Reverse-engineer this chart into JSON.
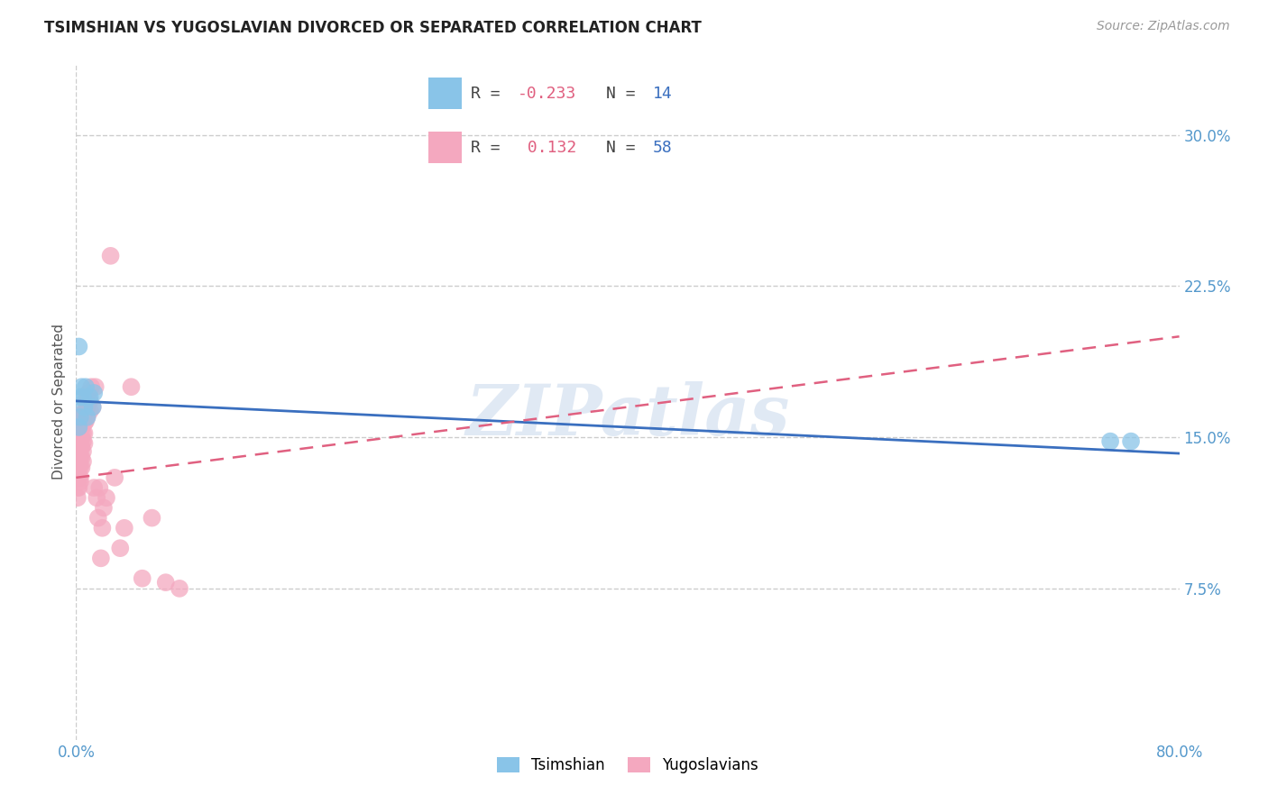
{
  "title": "TSIMSHIAN VS YUGOSLAVIAN DIVORCED OR SEPARATED CORRELATION CHART",
  "source": "Source: ZipAtlas.com",
  "ylabel": "Divorced or Separated",
  "yticks": [
    "7.5%",
    "15.0%",
    "22.5%",
    "30.0%"
  ],
  "ytick_vals": [
    0.075,
    0.15,
    0.225,
    0.3
  ],
  "xlim": [
    0.0,
    0.8
  ],
  "ylim": [
    0.0,
    0.335
  ],
  "tsimshian_color": "#89C4E8",
  "yugoslav_color": "#F4A8BF",
  "tsimshian_line_color": "#3A6FBF",
  "yugoslav_line_color": "#E06080",
  "watermark": "ZIPatlas",
  "tsimshian_x": [
    0.002,
    0.002,
    0.003,
    0.003,
    0.004,
    0.005,
    0.006,
    0.007,
    0.008,
    0.01,
    0.012,
    0.75,
    0.765,
    0.013
  ],
  "tsimshian_y": [
    0.195,
    0.155,
    0.16,
    0.17,
    0.175,
    0.17,
    0.165,
    0.175,
    0.16,
    0.17,
    0.165,
    0.148,
    0.148,
    0.172
  ],
  "yugoslav_x": [
    0.001,
    0.001,
    0.001,
    0.002,
    0.002,
    0.002,
    0.002,
    0.002,
    0.003,
    0.003,
    0.003,
    0.003,
    0.003,
    0.003,
    0.004,
    0.004,
    0.004,
    0.004,
    0.004,
    0.005,
    0.005,
    0.005,
    0.005,
    0.005,
    0.005,
    0.006,
    0.006,
    0.006,
    0.006,
    0.007,
    0.007,
    0.007,
    0.008,
    0.008,
    0.009,
    0.009,
    0.01,
    0.01,
    0.011,
    0.012,
    0.013,
    0.014,
    0.015,
    0.016,
    0.017,
    0.018,
    0.019,
    0.02,
    0.022,
    0.025,
    0.028,
    0.032,
    0.035,
    0.04,
    0.048,
    0.055,
    0.065,
    0.075
  ],
  "yugoslav_y": [
    0.13,
    0.125,
    0.12,
    0.145,
    0.14,
    0.135,
    0.13,
    0.125,
    0.15,
    0.145,
    0.14,
    0.135,
    0.13,
    0.128,
    0.155,
    0.15,
    0.145,
    0.14,
    0.135,
    0.162,
    0.158,
    0.152,
    0.148,
    0.143,
    0.138,
    0.162,
    0.157,
    0.152,
    0.147,
    0.168,
    0.163,
    0.158,
    0.165,
    0.16,
    0.172,
    0.168,
    0.168,
    0.163,
    0.175,
    0.165,
    0.125,
    0.175,
    0.12,
    0.11,
    0.125,
    0.09,
    0.105,
    0.115,
    0.12,
    0.24,
    0.13,
    0.095,
    0.105,
    0.175,
    0.08,
    0.11,
    0.078,
    0.075
  ],
  "tsim_trendline_x": [
    0.0,
    0.8
  ],
  "tsim_trendline_y": [
    0.168,
    0.142
  ],
  "yugo_trendline_x": [
    0.0,
    0.8
  ],
  "yugo_trendline_y": [
    0.13,
    0.2
  ]
}
